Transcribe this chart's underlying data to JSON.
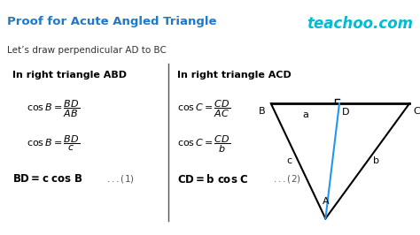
{
  "title": "Proof for Acute Angled Triangle",
  "title_color": "#2079C7",
  "teachoo_text": "teachoo.com",
  "teachoo_color": "#00BCD4",
  "subtitle": "Let’s draw perpendicular AD to BC",
  "subtitle_color": "#333333",
  "left_header": "In right triangle ABD",
  "right_header": "In right triangle ACD",
  "header_color": "#000000",
  "bg_color": "#ffffff",
  "divider_color": "#555555",
  "triangle_color": "#000000",
  "altitude_color": "#2196F3",
  "label_color": "#000000",
  "tri_A": [
    0.775,
    0.93
  ],
  "tri_B": [
    0.645,
    0.44
  ],
  "tri_C": [
    0.975,
    0.44
  ],
  "tri_D": [
    0.808,
    0.44
  ],
  "sq_size": 0.018
}
